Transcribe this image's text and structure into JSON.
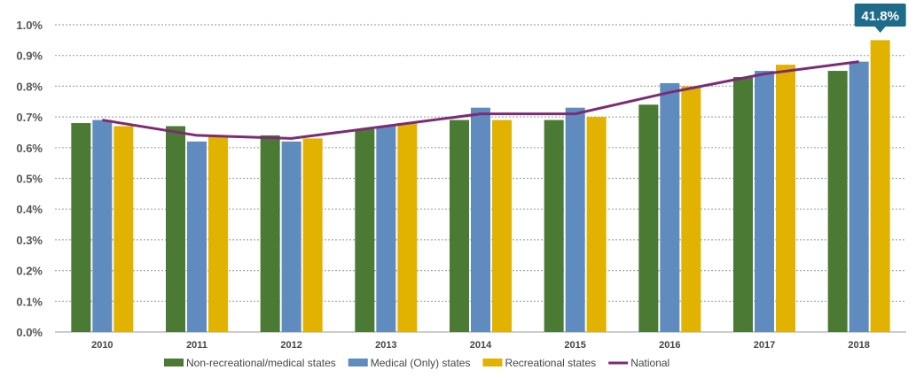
{
  "chart_data": {
    "type": "bar",
    "categories": [
      "2010",
      "2011",
      "2012",
      "2013",
      "2014",
      "2015",
      "2016",
      "2017",
      "2018"
    ],
    "series": [
      {
        "name": "Non-recreational/medical states",
        "kind": "bar",
        "color": "#4a7a34",
        "values": [
          0.68,
          0.67,
          0.64,
          0.66,
          0.69,
          0.69,
          0.74,
          0.83,
          0.85
        ]
      },
      {
        "name": "Medical (Only) states",
        "kind": "bar",
        "color": "#5f8bbf",
        "values": [
          0.69,
          0.62,
          0.62,
          0.67,
          0.73,
          0.73,
          0.81,
          0.85,
          0.88
        ]
      },
      {
        "name": "Recreational states",
        "kind": "bar",
        "color": "#e2b200",
        "values": [
          0.67,
          0.64,
          0.63,
          0.68,
          0.69,
          0.7,
          0.8,
          0.87,
          0.95
        ]
      },
      {
        "name": "National",
        "kind": "line",
        "color": "#7b2c73",
        "values": [
          0.69,
          0.64,
          0.63,
          0.67,
          0.71,
          0.71,
          0.78,
          0.84,
          0.88
        ]
      }
    ],
    "yticks": [
      "0.0%",
      "0.1%",
      "0.2%",
      "0.3%",
      "0.4%",
      "0.5%",
      "0.6%",
      "0.7%",
      "0.8%",
      "0.9%",
      "1.0%"
    ],
    "ylim": [
      0,
      1.0
    ],
    "grid": true,
    "legend_position": "bottom",
    "callout": {
      "text": "41.8%",
      "color": "#1e6b8a",
      "category": "2018",
      "series": "Recreational states"
    }
  }
}
